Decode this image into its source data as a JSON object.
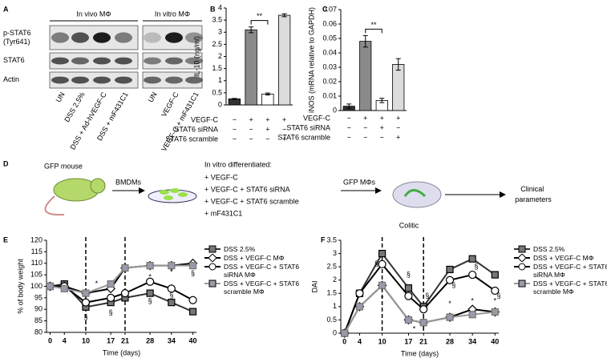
{
  "panel_labels": [
    "A",
    "B",
    "C",
    "D",
    "E",
    "F"
  ],
  "blot": {
    "groups": [
      "In vivo MΦ",
      "In vitro MΦ"
    ],
    "rows": [
      "p-STAT6\n(Tyr641)",
      "STAT6",
      "Actin"
    ],
    "lanes": [
      "UN",
      "DSS 2.5%",
      "DSS + Ad-hVEGF-C",
      "DSS + mF431C1",
      "UN",
      "VEGF-C",
      "VEGF-C + mF431C1"
    ]
  },
  "diagram": {
    "mouse": "GFP mouse",
    "step1": "BMDMs",
    "heading": "In vitro differentiated:",
    "items": [
      "+ VEGF-C",
      "+ VEGF-C + STAT6 siRNA",
      "+ VEGF-C + STAT6 scramble",
      "+ mF431C1"
    ],
    "step2": "GFP MΦs",
    "colitic": "Colitic",
    "outcome": "Clinical parameters"
  },
  "chart_data": [
    {
      "type": "bar",
      "y_label": "IL-10 (ng/ml)",
      "values": [
        0.25,
        3.1,
        0.45,
        3.7
      ],
      "errors": [
        0.02,
        0.12,
        0.04,
        0.06
      ],
      "colors": [
        "#333333",
        "#8a8a8a",
        "#ffffff",
        "#dcdcdc"
      ],
      "ylim": [
        0,
        4
      ],
      "yticks": [
        0,
        0.5,
        1,
        1.5,
        2,
        2.5,
        3,
        3.5,
        4
      ],
      "annotation": "**",
      "conditions": [
        {
          "label": "VEGF-C",
          "signs": [
            "−",
            "+",
            "+",
            "+"
          ]
        },
        {
          "label": "STAT6 siRNA",
          "signs": [
            "−",
            "−",
            "+",
            "−"
          ]
        },
        {
          "label": "STAT6 scramble",
          "signs": [
            "−",
            "−",
            "−",
            "+"
          ]
        }
      ]
    },
    {
      "type": "bar",
      "y_label": "iNOS (mRNA relative to GAPDH)",
      "values": [
        0.003,
        0.048,
        0.007,
        0.032
      ],
      "errors": [
        0.0015,
        0.004,
        0.0015,
        0.004
      ],
      "colors": [
        "#333333",
        "#8a8a8a",
        "#ffffff",
        "#dcdcdc"
      ],
      "ylim": [
        0,
        0.07
      ],
      "yticks": [
        0,
        0.01,
        0.02,
        0.03,
        0.04,
        0.05,
        0.06,
        0.07
      ],
      "annotation": "**",
      "conditions": [
        {
          "label": "VEGF-C",
          "signs": [
            "−",
            "+",
            "+",
            "+"
          ]
        },
        {
          "label": "STAT6 siRNA",
          "signs": [
            "−",
            "−",
            "+",
            "−"
          ]
        },
        {
          "label": "STAT6 scramble",
          "signs": [
            "−",
            "−",
            "−",
            "+"
          ]
        }
      ]
    },
    {
      "type": "line",
      "y_label": "% of body weight",
      "x_label": "Time (days)",
      "x": [
        0,
        4,
        10,
        17,
        21,
        28,
        34,
        40
      ],
      "xlim": [
        -1,
        41
      ],
      "xticks": [
        0,
        4,
        10,
        17,
        21,
        28,
        34,
        40
      ],
      "ylim": [
        80,
        120
      ],
      "yticks": [
        80,
        85,
        90,
        95,
        100,
        105,
        110,
        115,
        120
      ],
      "vlines": [
        10,
        21
      ],
      "series": [
        {
          "name": "DSS 2.5%",
          "color": "#333333",
          "fill": "#777777",
          "marker": "square",
          "values": [
            100,
            101,
            91,
            93,
            95,
            97,
            93,
            89
          ]
        },
        {
          "name": "DSS + VEGF-C MΦ",
          "color": "#000000",
          "fill": "#ffffff",
          "marker": "diamond",
          "values": [
            100,
            100,
            97,
            99,
            108,
            109,
            109,
            110
          ]
        },
        {
          "name": "DSS + VEGF-C + STAT6 siRNA MΦ",
          "color": "#000000",
          "fill": "#ffffff",
          "marker": "circle",
          "values": [
            100,
            100,
            93,
            95,
            97,
            102,
            99,
            94
          ]
        },
        {
          "name": "DSS + VEGF-C + STAT6 scramble MΦ",
          "color": "#999999",
          "fill": "#9a9aaa",
          "marker": "square",
          "values": [
            100,
            99,
            97,
            101,
            108,
            109,
            109,
            109
          ]
        }
      ],
      "annotations": [
        {
          "text": "§",
          "x": 10,
          "y": 86.5
        },
        {
          "text": "*",
          "x": 13,
          "y": 101
        },
        {
          "text": "§",
          "x": 17,
          "y": 88.5
        },
        {
          "text": "*",
          "x": 21,
          "y": 100.5
        },
        {
          "text": "*",
          "x": 28,
          "y": 104
        },
        {
          "text": "§",
          "x": 28,
          "y": 93.5
        },
        {
          "text": "*",
          "x": 34,
          "y": 106
        },
        {
          "text": "§",
          "x": 34,
          "y": 96
        },
        {
          "text": "§",
          "x": 40,
          "y": 105.5
        }
      ]
    },
    {
      "type": "line",
      "y_label": "DAI",
      "x_label": "Time (days)",
      "x": [
        0,
        4,
        10,
        17,
        21,
        28,
        34,
        40
      ],
      "xlim": [
        -1,
        41
      ],
      "xticks": [
        0,
        4,
        10,
        17,
        21,
        28,
        34,
        40
      ],
      "ylim": [
        0,
        3.5
      ],
      "yticks": [
        0,
        0.5,
        1,
        1.5,
        2,
        2.5,
        3,
        3.5
      ],
      "vlines": [
        10,
        21
      ],
      "series": [
        {
          "name": "DSS 2.5%",
          "color": "#333333",
          "fill": "#777777",
          "marker": "square",
          "values": [
            0,
            1.5,
            3.0,
            1.7,
            1.0,
            2.4,
            2.8,
            2.2
          ]
        },
        {
          "name": "DSS + VEGF-C MΦ",
          "color": "#000000",
          "fill": "#ffffff",
          "marker": "diamond",
          "values": [
            0,
            1.0,
            1.8,
            0.5,
            0.4,
            0.6,
            0.9,
            0.8
          ]
        },
        {
          "name": "DSS + VEGF-C + STAT6 siRNA MΦ",
          "color": "#000000",
          "fill": "#ffffff",
          "marker": "circle",
          "values": [
            0,
            1.5,
            2.6,
            1.4,
            0.9,
            2.0,
            2.2,
            1.6
          ]
        },
        {
          "name": "DSS + VEGF-C + STAT6 scramble MΦ",
          "color": "#999999",
          "fill": "#9a9aaa",
          "marker": "square",
          "values": [
            0,
            1.0,
            1.8,
            0.5,
            0.4,
            0.6,
            0.7,
            0.8
          ]
        }
      ],
      "annotations": [
        {
          "text": "§",
          "x": 8.5,
          "y": 2.6
        },
        {
          "text": "*",
          "x": 10,
          "y": 1.3
        },
        {
          "text": "§",
          "x": 17,
          "y": 2.2
        },
        {
          "text": "*",
          "x": 18.5,
          "y": 0.15
        },
        {
          "text": "§",
          "x": 22,
          "y": 1.4
        },
        {
          "text": "§",
          "x": 29,
          "y": 1.8
        },
        {
          "text": "*",
          "x": 28,
          "y": 1.1
        },
        {
          "text": "§",
          "x": 35,
          "y": 2.5
        },
        {
          "text": "*",
          "x": 34,
          "y": 1.2
        },
        {
          "text": "§",
          "x": 41,
          "y": 1.4
        },
        {
          "text": "*",
          "x": 40,
          "y": 1.2
        }
      ]
    }
  ]
}
